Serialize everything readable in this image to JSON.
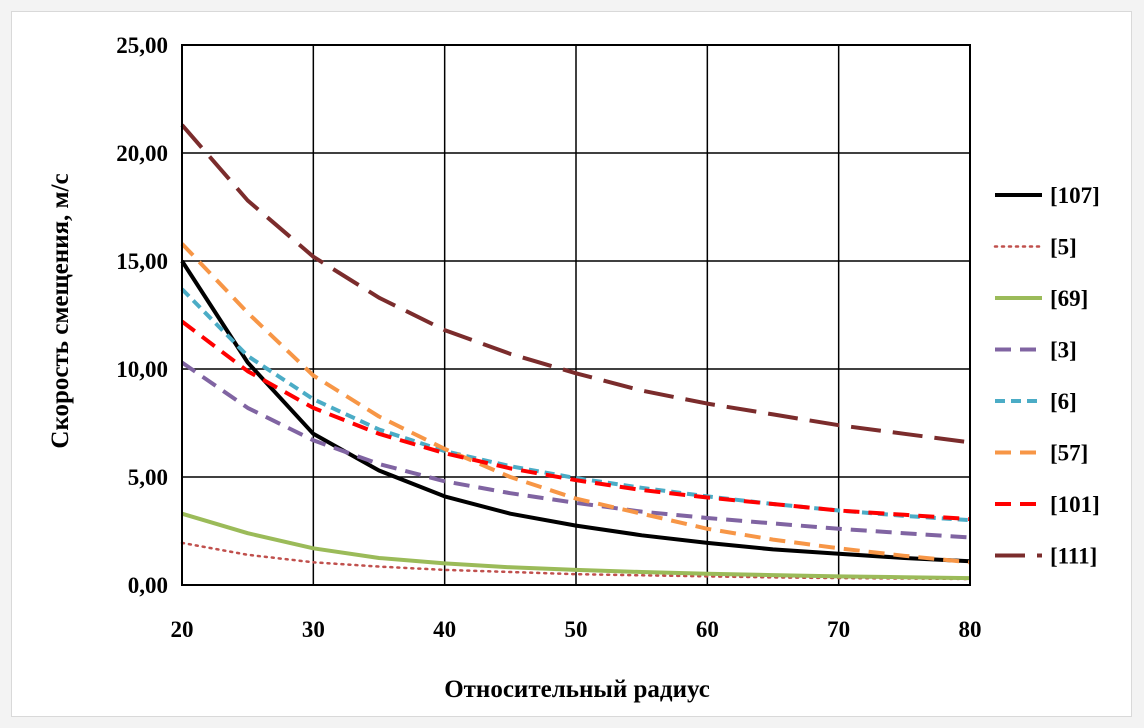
{
  "chart_data": {
    "type": "line",
    "title": "",
    "xlabel": "Относительный радиус",
    "ylabel": "Скорость смещения, м/с",
    "xlim": [
      20,
      80
    ],
    "ylim": [
      0,
      25
    ],
    "x_ticks": [
      "20",
      "30",
      "40",
      "50",
      "60",
      "70",
      "80"
    ],
    "y_ticks": [
      "0,00",
      "5,00",
      "10,00",
      "15,00",
      "20,00",
      "25,00"
    ],
    "grid": true,
    "legend_position": "right",
    "x": [
      20,
      25,
      30,
      35,
      40,
      45,
      50,
      55,
      60,
      65,
      70,
      75,
      80
    ],
    "series": [
      {
        "name": "[107]",
        "color": "#000000",
        "dash": "solid",
        "width": 4,
        "values": [
          15.0,
          10.3,
          7.0,
          5.3,
          4.1,
          3.3,
          2.75,
          2.3,
          1.95,
          1.65,
          1.45,
          1.25,
          1.1
        ]
      },
      {
        "name": "[5]",
        "color": "#c0504d",
        "dash": "dot",
        "width": 2.5,
        "values": [
          1.95,
          1.4,
          1.05,
          0.85,
          0.7,
          0.6,
          0.5,
          0.45,
          0.4,
          0.35,
          0.32,
          0.3,
          0.28
        ]
      },
      {
        "name": "[69]",
        "color": "#9bbb59",
        "dash": "solid",
        "width": 4,
        "values": [
          3.3,
          2.4,
          1.7,
          1.25,
          1.0,
          0.82,
          0.7,
          0.6,
          0.52,
          0.46,
          0.4,
          0.36,
          0.32
        ]
      },
      {
        "name": "[3]",
        "color": "#8064a2",
        "dash": "dash",
        "width": 4,
        "values": [
          10.3,
          8.2,
          6.7,
          5.6,
          4.8,
          4.25,
          3.8,
          3.4,
          3.1,
          2.85,
          2.6,
          2.4,
          2.2
        ]
      },
      {
        "name": "[6]",
        "color": "#4bacc6",
        "dash": "shortdash",
        "width": 4,
        "values": [
          13.7,
          10.6,
          8.6,
          7.2,
          6.2,
          5.5,
          4.95,
          4.5,
          4.1,
          3.75,
          3.45,
          3.2,
          3.0
        ]
      },
      {
        "name": "[57]",
        "color": "#f79646",
        "dash": "dash",
        "width": 4,
        "values": [
          15.8,
          12.6,
          9.7,
          7.8,
          6.3,
          5.0,
          4.0,
          3.3,
          2.6,
          2.1,
          1.7,
          1.35,
          1.05
        ]
      },
      {
        "name": "[101]",
        "color": "#ff0000",
        "dash": "dash",
        "width": 4,
        "values": [
          12.2,
          9.9,
          8.2,
          7.0,
          6.1,
          5.4,
          4.85,
          4.4,
          4.05,
          3.75,
          3.45,
          3.25,
          3.05
        ]
      },
      {
        "name": "[111]",
        "color": "#7b2c2c",
        "dash": "longdash",
        "width": 4,
        "values": [
          21.3,
          17.8,
          15.2,
          13.3,
          11.8,
          10.7,
          9.8,
          9.0,
          8.4,
          7.9,
          7.4,
          7.0,
          6.6
        ]
      }
    ]
  }
}
